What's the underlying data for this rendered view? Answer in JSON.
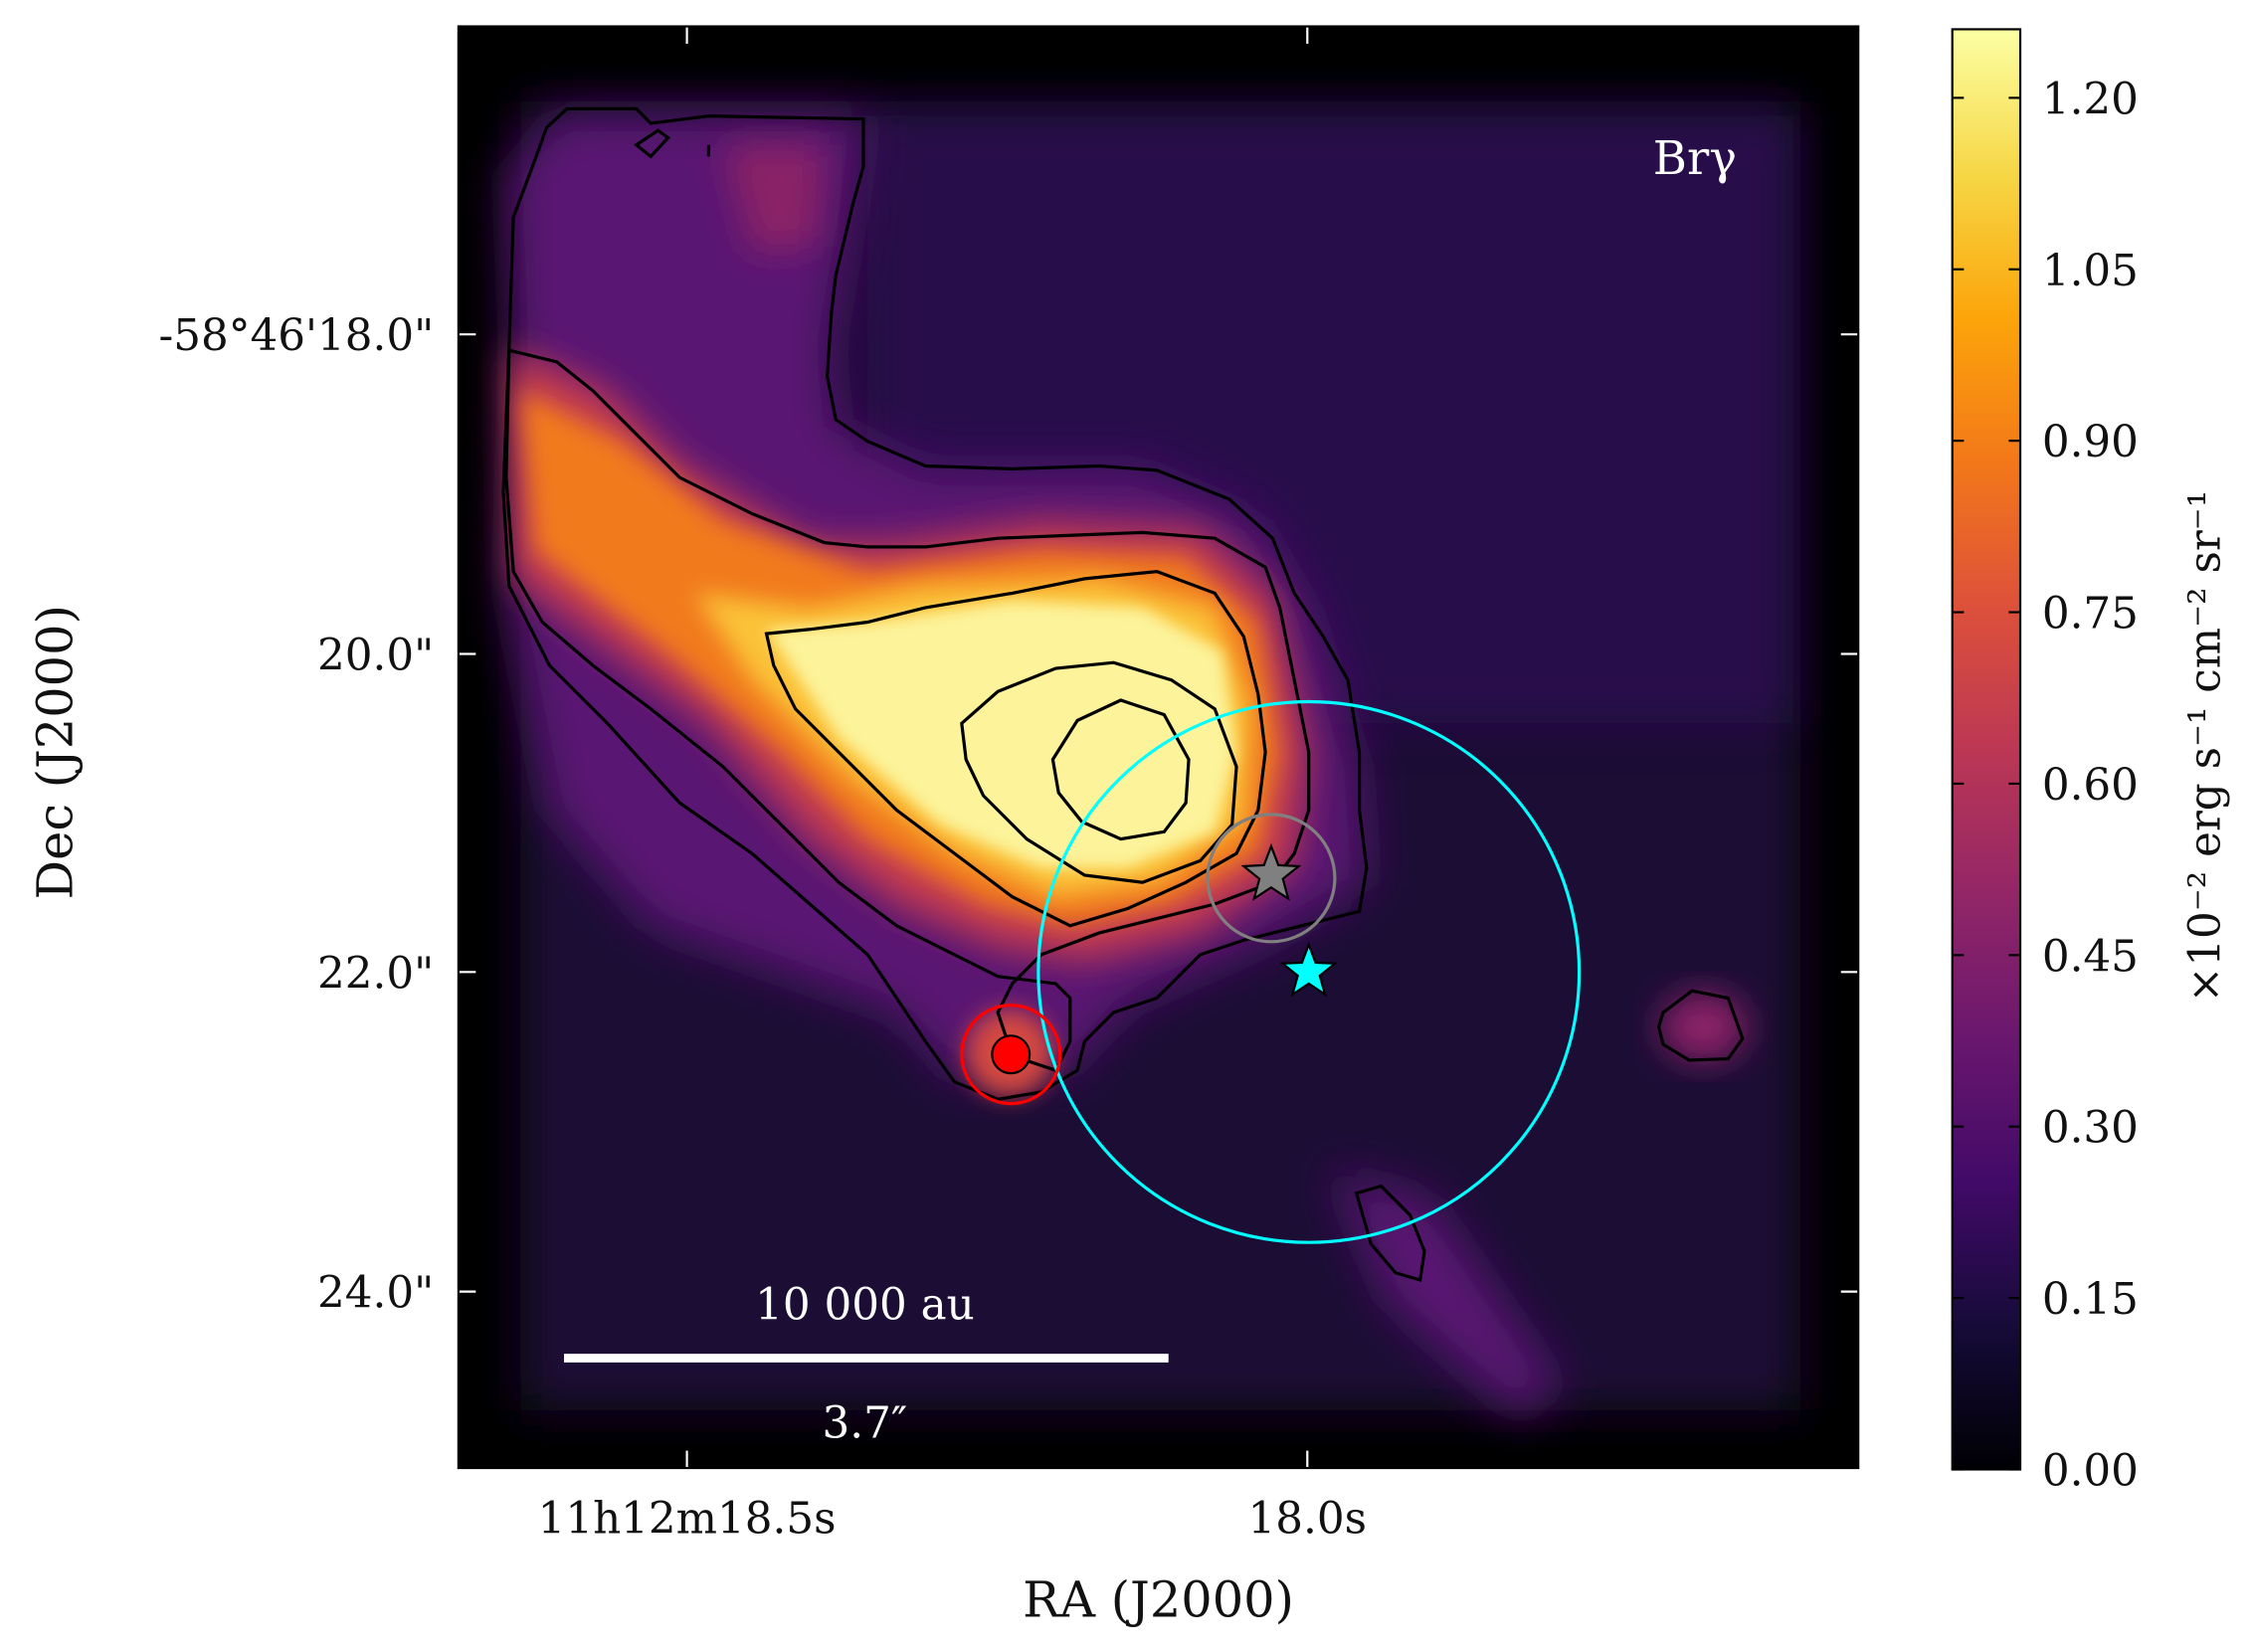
{
  "chart_data": {
    "type": "heatmap",
    "title": "",
    "line_label": "Brγ",
    "xlabel": "RA (J2000)",
    "ylabel": "Dec (J2000)",
    "x_ticks": [
      {
        "value_arcsec_offset": 0.0,
        "label": "11h12m18.5s"
      },
      {
        "value_arcsec_offset": 3.9,
        "label": "18.0s"
      }
    ],
    "y_ticks": [
      {
        "value_arcsec": 18.0,
        "label": "-58°46'18.0\""
      },
      {
        "value_arcsec": 20.0,
        "label": "20.0\""
      },
      {
        "value_arcsec": 22.0,
        "label": "22.0\""
      },
      {
        "value_arcsec": 24.0,
        "label": "24.0\""
      }
    ],
    "colorbar": {
      "colormap": "inferno",
      "label": "×10⁻² erg s⁻¹ cm⁻² sr⁻¹",
      "min": 0.0,
      "max": 1.26,
      "ticks": [
        "0.00",
        "0.15",
        "0.30",
        "0.45",
        "0.60",
        "0.75",
        "0.90",
        "1.05",
        "1.20"
      ]
    },
    "scalebar": {
      "physical": "10 000 au",
      "angular": "3.7″"
    },
    "markers": [
      {
        "name": "grey-star",
        "shape": "star",
        "color": "#808080",
        "ra_offset_arcsec": 3.65,
        "dec_arcsec": 21.4
      },
      {
        "name": "cyan-star",
        "shape": "star",
        "color": "#00ffff",
        "ra_offset_arcsec": 3.9,
        "dec_arcsec": 22.0
      },
      {
        "name": "red-source",
        "shape": "circle",
        "color": "#ff0000",
        "ra_offset_arcsec": 2.0,
        "dec_arcsec": 22.5
      }
    ],
    "circles": [
      {
        "name": "cyan-beam-circle",
        "color": "#00ffff",
        "ra_offset_arcsec": 3.9,
        "dec_arcsec": 22.0,
        "radius_arcsec": 1.7
      },
      {
        "name": "grey-circle",
        "color": "#808080",
        "ra_offset_arcsec": 3.65,
        "dec_arcsec": 21.4,
        "radius_arcsec": 0.4
      },
      {
        "name": "red-circle",
        "color": "#ff0000",
        "ra_offset_arcsec": 2.0,
        "dec_arcsec": 22.5,
        "radius_arcsec": 0.32
      }
    ],
    "contours": "black contour lines over the Br-gamma emission (5 levels)"
  }
}
